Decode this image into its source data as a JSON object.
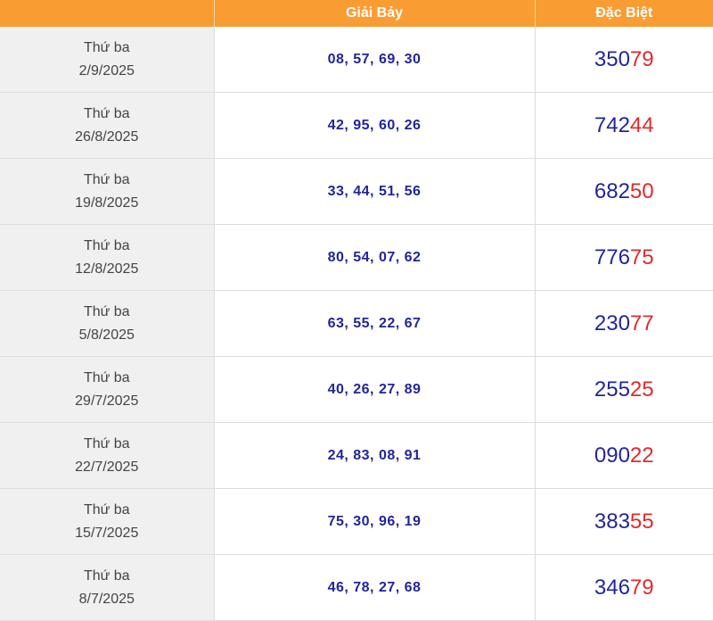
{
  "header": {
    "col1": "",
    "col2": "Giải Bảy",
    "col3": "Đặc Biệt"
  },
  "colors": {
    "header_bg": "#f99d33",
    "number_blue": "#222599",
    "highlight_red": "#e02a2a"
  },
  "rows": [
    {
      "weekday": "Thứ ba",
      "date": "2/9/2025",
      "giai_bay": "08, 57, 69, 30",
      "db_prefix": "350",
      "db_suffix": "79"
    },
    {
      "weekday": "Thứ ba",
      "date": "26/8/2025",
      "giai_bay": "42, 95, 60, 26",
      "db_prefix": "742",
      "db_suffix": "44"
    },
    {
      "weekday": "Thứ ba",
      "date": "19/8/2025",
      "giai_bay": "33, 44, 51, 56",
      "db_prefix": "682",
      "db_suffix": "50"
    },
    {
      "weekday": "Thứ ba",
      "date": "12/8/2025",
      "giai_bay": "80, 54, 07, 62",
      "db_prefix": "776",
      "db_suffix": "75"
    },
    {
      "weekday": "Thứ ba",
      "date": "5/8/2025",
      "giai_bay": "63, 55, 22, 67",
      "db_prefix": "230",
      "db_suffix": "77"
    },
    {
      "weekday": "Thứ ba",
      "date": "29/7/2025",
      "giai_bay": "40, 26, 27, 89",
      "db_prefix": "255",
      "db_suffix": "25"
    },
    {
      "weekday": "Thứ ba",
      "date": "22/7/2025",
      "giai_bay": "24, 83, 08, 91",
      "db_prefix": "090",
      "db_suffix": "22"
    },
    {
      "weekday": "Thứ ba",
      "date": "15/7/2025",
      "giai_bay": "75, 30, 96, 19",
      "db_prefix": "383",
      "db_suffix": "55"
    },
    {
      "weekday": "Thứ ba",
      "date": "8/7/2025",
      "giai_bay": "46, 78, 27, 68",
      "db_prefix": "346",
      "db_suffix": "79"
    }
  ]
}
